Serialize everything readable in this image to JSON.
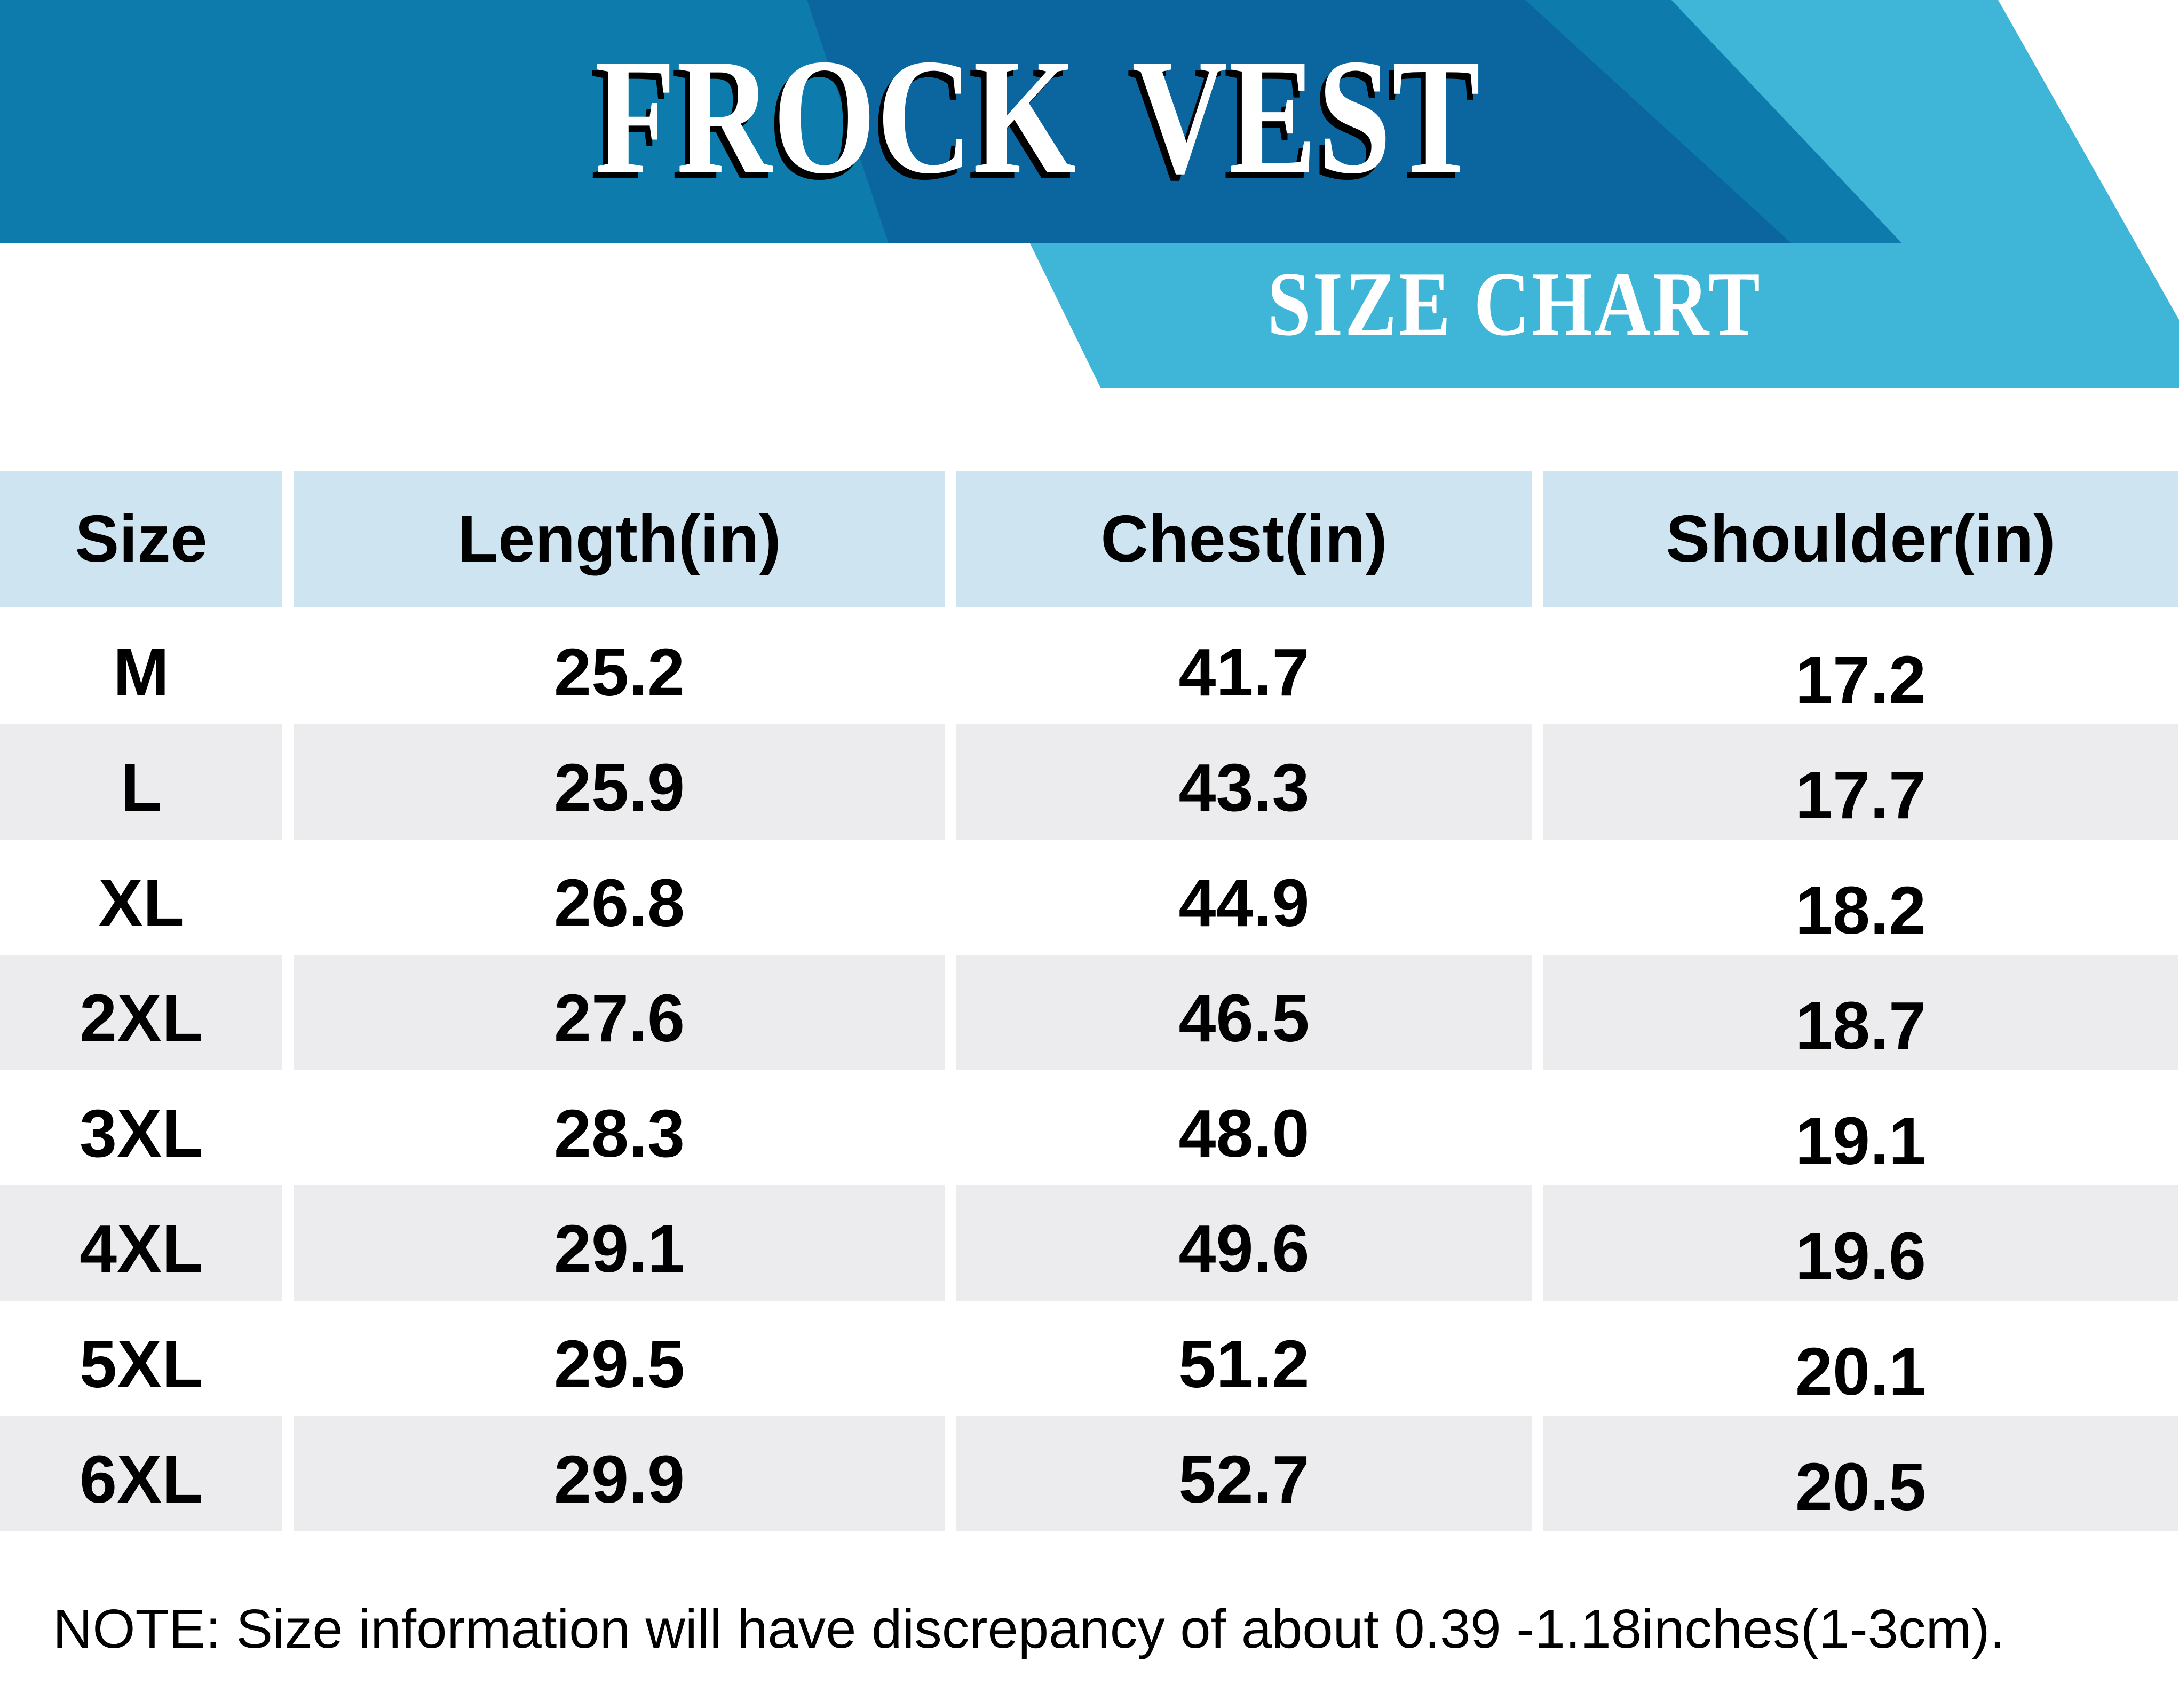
{
  "banner": {
    "title": "FROCK VEST",
    "subtitle": "SIZE CHART",
    "colors": {
      "base_blue": "#0d7cad",
      "dark_blue": "#0b66a0",
      "light_blue": "#3fb5d7"
    }
  },
  "table": {
    "headers": [
      "Size",
      "Length(in)",
      "Chest(in)",
      "Shoulder(in)"
    ],
    "header_bg": "#cfe4f1",
    "stripe_bg": "#ececef",
    "rows": [
      {
        "size": "M",
        "length": "25.2",
        "chest": "41.7",
        "shoulder": "17.2"
      },
      {
        "size": "L",
        "length": "25.9",
        "chest": "43.3",
        "shoulder": "17.7"
      },
      {
        "size": "XL",
        "length": "26.8",
        "chest": "44.9",
        "shoulder": "18.2"
      },
      {
        "size": "2XL",
        "length": "27.6",
        "chest": "46.5",
        "shoulder": "18.7"
      },
      {
        "size": "3XL",
        "length": "28.3",
        "chest": "48.0",
        "shoulder": "19.1"
      },
      {
        "size": "4XL",
        "length": "29.1",
        "chest": "49.6",
        "shoulder": "19.6"
      },
      {
        "size": "5XL",
        "length": "29.5",
        "chest": "51.2",
        "shoulder": "20.1"
      },
      {
        "size": "6XL",
        "length": "29.9",
        "chest": "52.7",
        "shoulder": "20.5"
      }
    ]
  },
  "note": "NOTE: Size information will have discrepancy of about 0.39 -1.18inches(1-3cm).",
  "chart_data": {
    "type": "table",
    "title": "FROCK VEST",
    "subtitle": "SIZE CHART",
    "columns": [
      "Size",
      "Length(in)",
      "Chest(in)",
      "Shoulder(in)"
    ],
    "rows": [
      [
        "M",
        25.2,
        41.7,
        17.2
      ],
      [
        "L",
        25.9,
        43.3,
        17.7
      ],
      [
        "XL",
        26.8,
        44.9,
        18.2
      ],
      [
        "2XL",
        27.6,
        46.5,
        18.7
      ],
      [
        "3XL",
        28.3,
        48.0,
        19.1
      ],
      [
        "4XL",
        29.1,
        49.6,
        19.6
      ],
      [
        "5XL",
        29.5,
        51.2,
        20.1
      ],
      [
        "6XL",
        29.9,
        52.7,
        20.5
      ]
    ],
    "note": "NOTE: Size information will have discrepancy of about 0.39 -1.18inches(1-3cm)."
  }
}
